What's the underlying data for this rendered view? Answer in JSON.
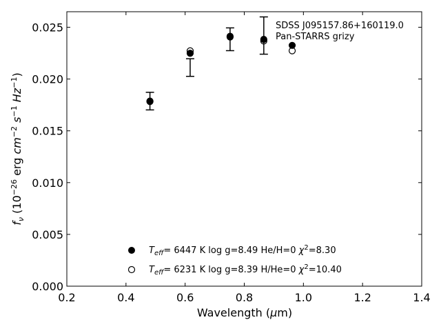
{
  "chart_data": {
    "type": "scatter",
    "title": "",
    "xlabel": "Wavelength (μm)",
    "ylabel": "f_ν (10^-26 erg cm^-2 s^-1 Hz^-1)",
    "xlim": [
      0.2,
      1.4
    ],
    "ylim": [
      0.0,
      0.0265
    ],
    "x_ticks": [
      "0.2",
      "0.4",
      "0.6",
      "0.8",
      "1.0",
      "1.2",
      "1.4"
    ],
    "y_ticks": [
      "0.000",
      "0.005",
      "0.010",
      "0.015",
      "0.020",
      "0.025"
    ],
    "grid": false,
    "annotations": [
      "SDSS J095157.86+160119.0",
      "Pan-STARRS grizy"
    ],
    "observed": [
      {
        "x": 0.481,
        "y": 0.01787,
        "err": 0.00085
      },
      {
        "x": 0.617,
        "y": 0.02111,
        "err": 0.00085
      },
      {
        "x": 0.752,
        "y": 0.02384,
        "err": 0.0011
      },
      {
        "x": 0.866,
        "y": 0.0242,
        "err": 0.0018
      },
      {
        "x": 0.962,
        "y": 0.02385,
        "err": 0.0
      }
    ],
    "series": [
      {
        "name": "T_eff= 6447 K log g=8.49 He/H=0 χ2=8.30",
        "marker": "filled-circle",
        "x": [
          0.481,
          0.617,
          0.752,
          0.866,
          0.962
        ],
        "y": [
          0.01783,
          0.02249,
          0.02413,
          0.02383,
          0.02325
        ]
      },
      {
        "name": "T_eff= 6231 K log g=8.39 H/He=0 χ2=10.40",
        "marker": "open-circle",
        "x": [
          0.481,
          0.617,
          0.752,
          0.866,
          0.962
        ],
        "y": [
          0.01787,
          0.02272,
          0.02406,
          0.02368,
          0.02273
        ]
      }
    ],
    "legend_placement": "bottom-center",
    "legend": [
      {
        "teff": "6447 K",
        "logg": "log g=8.49",
        "comp": "He/H=0",
        "chi": "=8.30"
      },
      {
        "teff": "6231 K",
        "logg": "log g=8.39",
        "comp": "H/He=0",
        "chi": "=10.40"
      }
    ],
    "colors": {
      "marker": "#000000",
      "axes": "#000000"
    }
  }
}
